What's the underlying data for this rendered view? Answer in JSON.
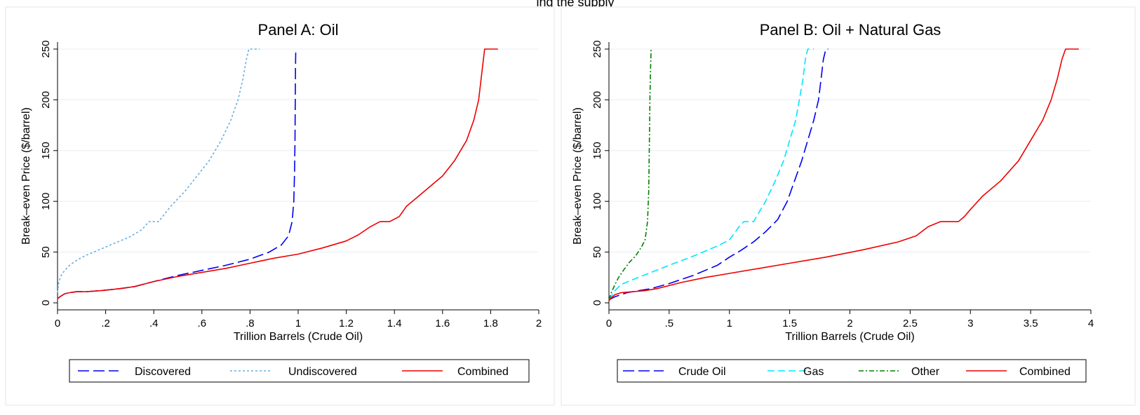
{
  "header_fragment": "ing the supply",
  "chart_data": [
    {
      "type": "line",
      "title": "Panel A: Oil",
      "xlabel": "Trillion Barrels (Crude Oil)",
      "ylabel": "Break–even Price ($/barrel)",
      "xlim": [
        0,
        2
      ],
      "ylim": [
        0,
        250
      ],
      "x_ticks": [
        0,
        0.2,
        0.4,
        0.6,
        0.8,
        1,
        1.2,
        1.4,
        1.6,
        1.8,
        2
      ],
      "x_tick_labels": [
        "0",
        ".2",
        ".4",
        ".6",
        ".8",
        "1",
        "1.2",
        "1.4",
        "1.6",
        "1.8",
        "2"
      ],
      "y_ticks": [
        0,
        50,
        100,
        150,
        200,
        250
      ],
      "y_tick_labels": [
        "0",
        "50",
        "100",
        "150",
        "200",
        "250"
      ],
      "grid": "horizontal",
      "legend_position": "bottom",
      "series": [
        {
          "name": "Discovered",
          "color": "#0000ee",
          "dash": "long-dash",
          "x": [
            0,
            0.01,
            0.03,
            0.05,
            0.08,
            0.12,
            0.18,
            0.22,
            0.26,
            0.32,
            0.4,
            0.5,
            0.6,
            0.7,
            0.8,
            0.88,
            0.93,
            0.96,
            0.975,
            0.982,
            0.985,
            0.987,
            0.988,
            0.989,
            0.99
          ],
          "y": [
            4,
            6,
            9,
            10,
            11,
            11,
            12,
            13,
            14,
            16,
            21,
            27,
            32,
            37,
            43,
            50,
            57,
            66,
            80,
            100,
            130,
            160,
            200,
            230,
            250
          ]
        },
        {
          "name": "Undiscovered",
          "color": "#6ab0e0",
          "dash": "short-dash",
          "x": [
            0,
            0.005,
            0.015,
            0.03,
            0.05,
            0.08,
            0.12,
            0.18,
            0.25,
            0.3,
            0.35,
            0.38,
            0.42,
            0.47,
            0.53,
            0.58,
            0.63,
            0.68,
            0.72,
            0.75,
            0.77,
            0.785,
            0.795,
            0.81,
            0.84
          ],
          "y": [
            10,
            20,
            27,
            32,
            37,
            42,
            47,
            53,
            60,
            65,
            72,
            80,
            80,
            95,
            110,
            125,
            140,
            160,
            180,
            200,
            220,
            240,
            250,
            250,
            250
          ]
        },
        {
          "name": "Combined",
          "color": "#ee0000",
          "dash": "solid",
          "x": [
            0,
            0.01,
            0.03,
            0.05,
            0.08,
            0.12,
            0.18,
            0.22,
            0.26,
            0.32,
            0.4,
            0.5,
            0.6,
            0.7,
            0.8,
            0.9,
            1.0,
            1.1,
            1.2,
            1.25,
            1.3,
            1.34,
            1.38,
            1.42,
            1.45,
            1.5,
            1.55,
            1.6,
            1.65,
            1.7,
            1.73,
            1.75,
            1.76,
            1.77,
            1.775,
            1.78,
            1.79,
            1.8,
            1.83
          ],
          "y": [
            4,
            6,
            9,
            10,
            11,
            11,
            12,
            13,
            14,
            16,
            21,
            26,
            30,
            34,
            39,
            44,
            48,
            54,
            61,
            67,
            75,
            80,
            80,
            85,
            95,
            105,
            115,
            125,
            140,
            160,
            180,
            200,
            220,
            240,
            250,
            250,
            250,
            250,
            250
          ]
        }
      ]
    },
    {
      "type": "line",
      "title": "Panel B: Oil + Natural Gas",
      "xlabel": "Trillion Barrels (Crude Oil)",
      "ylabel": "Break–even Price ($/barrel)",
      "xlim": [
        0,
        4
      ],
      "ylim": [
        0,
        250
      ],
      "x_ticks": [
        0,
        0.5,
        1,
        1.5,
        2,
        2.5,
        3,
        3.5,
        4
      ],
      "x_tick_labels": [
        "0",
        ".5",
        "1",
        "1.5",
        "2",
        "2.5",
        "3",
        "3.5",
        "4"
      ],
      "y_ticks": [
        0,
        50,
        100,
        150,
        200,
        250
      ],
      "y_tick_labels": [
        "0",
        "50",
        "100",
        "150",
        "200",
        "250"
      ],
      "grid": "horizontal",
      "legend_position": "bottom",
      "series": [
        {
          "name": "Crude Oil",
          "color": "#0000ee",
          "dash": "long-dash",
          "x": [
            0,
            0.05,
            0.15,
            0.25,
            0.35,
            0.5,
            0.7,
            0.9,
            1.0,
            1.1,
            1.2,
            1.3,
            1.4,
            1.48,
            1.54,
            1.6,
            1.65,
            1.7,
            1.74,
            1.76,
            1.78,
            1.8,
            1.82
          ],
          "y": [
            3,
            6,
            10,
            12,
            14,
            19,
            27,
            37,
            45,
            52,
            60,
            70,
            82,
            100,
            120,
            140,
            160,
            180,
            200,
            220,
            240,
            250,
            250
          ]
        },
        {
          "name": "Gas",
          "color": "#00e5ff",
          "dash": "dash",
          "x": [
            0,
            0.05,
            0.1,
            0.2,
            0.35,
            0.5,
            0.7,
            0.9,
            1.0,
            1.08,
            1.12,
            1.2,
            1.3,
            1.38,
            1.45,
            1.5,
            1.55,
            1.58,
            1.61,
            1.63,
            1.65,
            1.67,
            1.7
          ],
          "y": [
            3,
            12,
            18,
            23,
            30,
            37,
            46,
            56,
            62,
            75,
            80,
            80,
            100,
            120,
            140,
            160,
            180,
            200,
            220,
            240,
            250,
            250,
            250
          ]
        },
        {
          "name": "Other",
          "color": "#008000",
          "dash": "dash-dot",
          "x": [
            0,
            0.02,
            0.05,
            0.08,
            0.12,
            0.17,
            0.22,
            0.27,
            0.3,
            0.32,
            0.33,
            0.335,
            0.34,
            0.345,
            0.35
          ],
          "y": [
            3,
            10,
            18,
            25,
            32,
            40,
            46,
            55,
            62,
            80,
            110,
            150,
            200,
            230,
            250
          ]
        },
        {
          "name": "Combined",
          "color": "#ee0000",
          "dash": "solid",
          "x": [
            0,
            0.02,
            0.05,
            0.1,
            0.2,
            0.3,
            0.4,
            0.6,
            0.8,
            1.0,
            1.3,
            1.5,
            1.8,
            2.1,
            2.4,
            2.55,
            2.65,
            2.75,
            2.8,
            2.9,
            2.95,
            3.0,
            3.1,
            3.25,
            3.4,
            3.5,
            3.6,
            3.67,
            3.72,
            3.76,
            3.79,
            3.8,
            3.82,
            3.85,
            3.9
          ],
          "y": [
            2,
            5,
            8,
            10,
            11,
            12,
            14,
            20,
            25,
            29,
            35,
            39,
            45,
            52,
            60,
            66,
            75,
            80,
            80,
            80,
            85,
            92,
            105,
            120,
            140,
            160,
            180,
            200,
            220,
            240,
            250,
            250,
            250,
            250,
            250
          ]
        }
      ]
    }
  ]
}
